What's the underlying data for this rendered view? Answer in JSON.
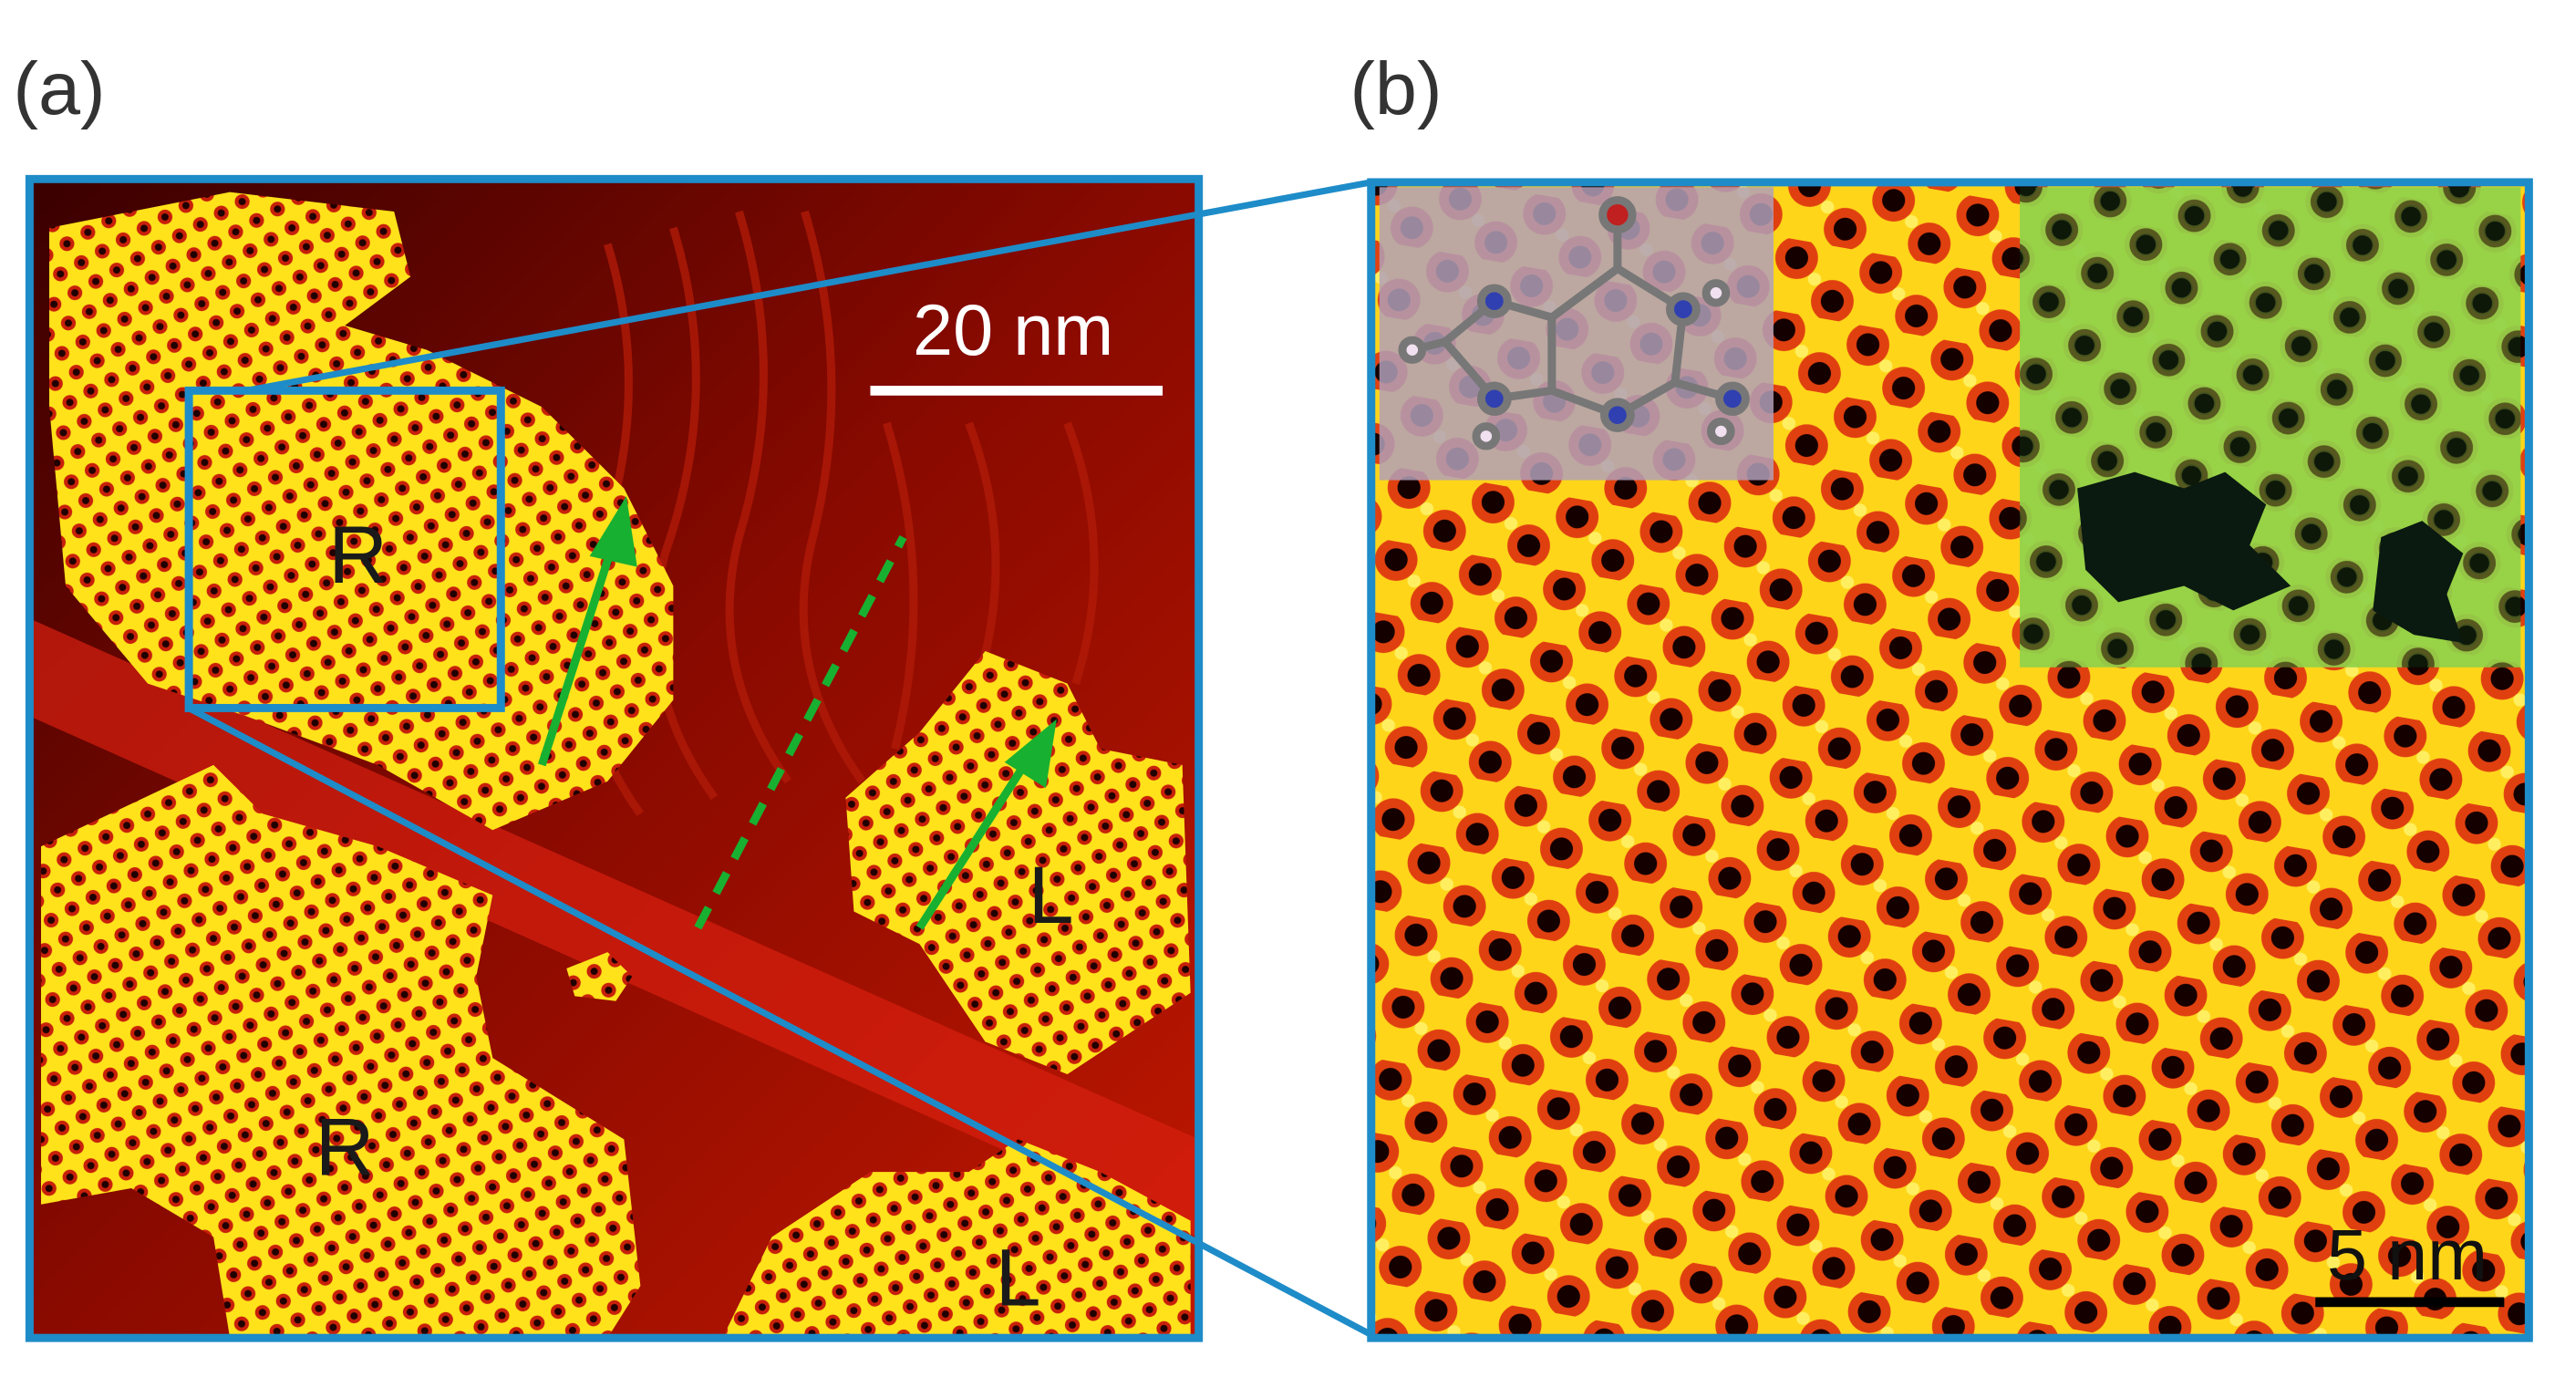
{
  "panels": [
    {
      "label": "(a)",
      "scale_bar": "20 nm",
      "domains": [
        "R",
        "R",
        "L",
        "L"
      ]
    },
    {
      "label": "(b)",
      "scale_bar": "5 nm"
    }
  ]
}
